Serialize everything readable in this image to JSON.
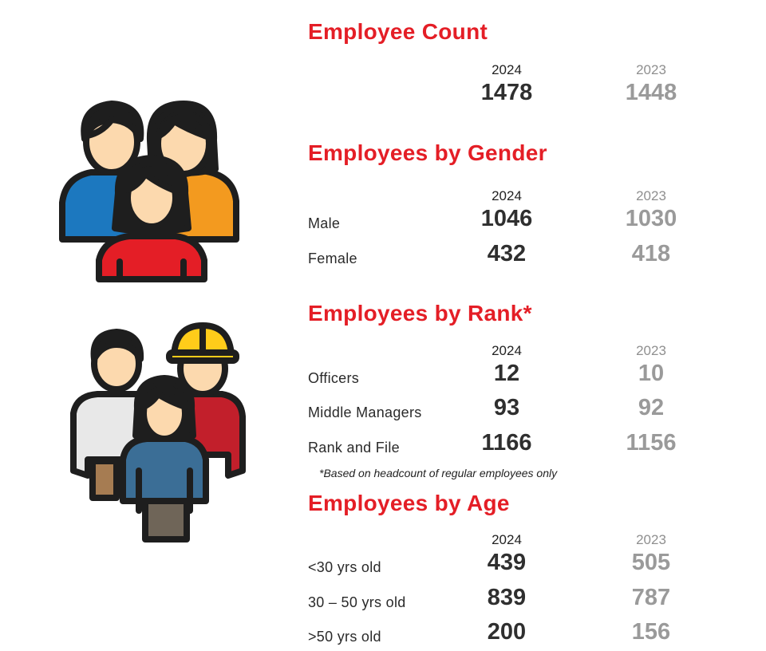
{
  "employee_count": {
    "title": "Employee Count",
    "year_current": "2024",
    "year_previous": "2023",
    "current": "1478",
    "previous": "1448"
  },
  "by_gender": {
    "title": "Employees by Gender",
    "year_current": "2024",
    "year_previous": "2023",
    "rows": [
      {
        "label": "Male",
        "current": "1046",
        "previous": "1030"
      },
      {
        "label": "Female",
        "current": "432",
        "previous": "418"
      }
    ]
  },
  "by_rank": {
    "title": "Employees by Rank*",
    "year_current": "2024",
    "year_previous": "2023",
    "rows": [
      {
        "label": "Officers",
        "current": "12",
        "previous": "10"
      },
      {
        "label": "Middle Managers",
        "current": "93",
        "previous": "92"
      },
      {
        "label": "Rank and File",
        "current": "1166",
        "previous": "1156"
      }
    ],
    "footnote": "*Based on headcount of regular employees only"
  },
  "by_age": {
    "title": "Employees by Age",
    "year_current": "2024",
    "year_previous": "2023",
    "rows": [
      {
        "label": "<30 yrs old",
        "current": "439",
        "previous": "505"
      },
      {
        "label": "30 – 50 yrs old",
        "current": "839",
        "previous": "787"
      },
      {
        "label": ">50 yrs old",
        "current": "200",
        "previous": "156"
      }
    ]
  },
  "colors": {
    "accent_red": "#e41e26",
    "value_current": "#2f2f2f",
    "value_previous": "#9a9a9a"
  },
  "icons": [
    "people-group-icon",
    "workers-group-icon"
  ]
}
